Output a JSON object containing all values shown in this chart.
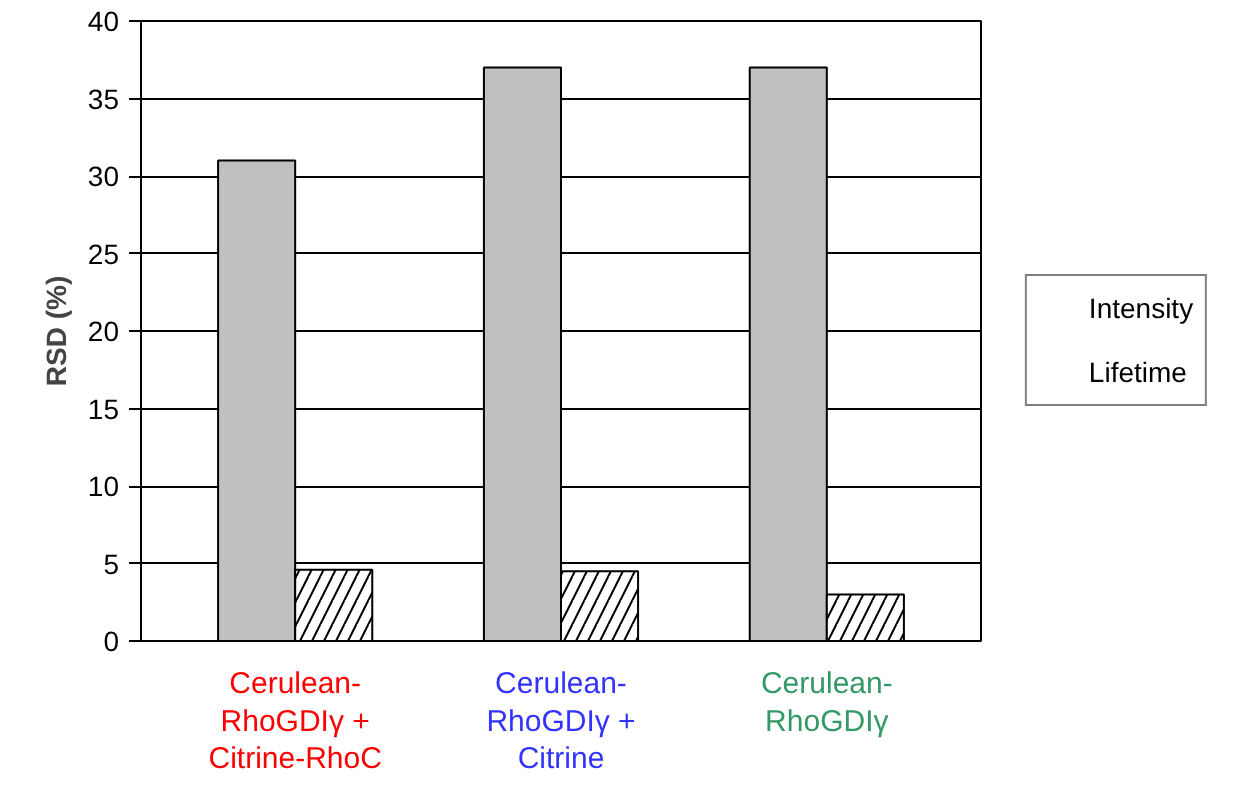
{
  "chart_data": {
    "type": "bar",
    "ylabel": "RSD (%)",
    "categories": [
      "Cerulean-\nRhoGDIγ +\nCitrine-RhoC",
      "Cerulean-\nRhoGDIγ +\nCitrine",
      "Cerulean-\nRhoGDIγ"
    ],
    "series": [
      {
        "name": "Intensity",
        "color": "#c0c0c0",
        "values": [
          31,
          37,
          37
        ]
      },
      {
        "name": "Lifetime",
        "color": "#ffffff",
        "values": [
          4.6,
          4.5,
          3.0
        ]
      }
    ],
    "ylim": [
      0,
      40
    ],
    "yticks": [
      0,
      5,
      10,
      15,
      20,
      25,
      30,
      35,
      40
    ],
    "grid": "y",
    "legend": "right"
  }
}
